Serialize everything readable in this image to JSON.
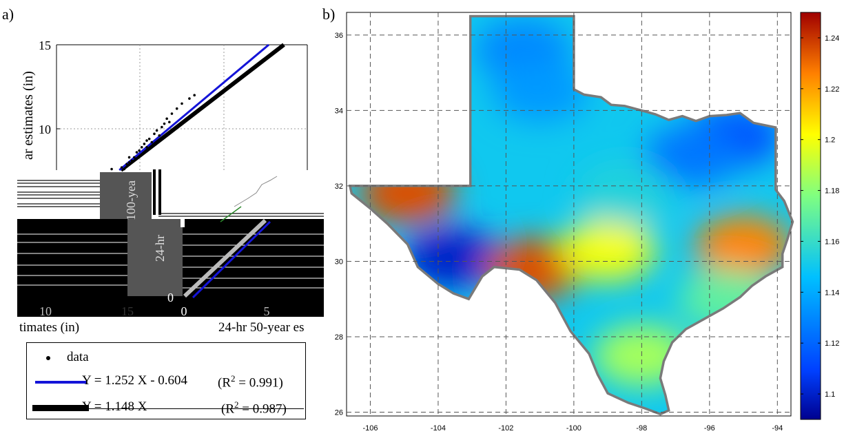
{
  "panels": {
    "a_label": "a)",
    "b_label": "b)"
  },
  "colors": {
    "blue_fit": "#1414d8",
    "black_fit": "#000000",
    "map_outline": "#7a7a7a"
  },
  "chart_data": [
    {
      "type": "scatter",
      "panel": "a)",
      "ylabel": "ar estimates (in)",
      "xlabel_fragments": [
        "timates (in)",
        "24-hr 50-year es"
      ],
      "corrupted_text_fragments": [
        "100-yea",
        "24-hr"
      ],
      "yticks": [
        "15",
        "10"
      ],
      "xticks_fragments": [
        "10",
        "15",
        "0",
        "5"
      ],
      "inset_ytick": "0",
      "ylim": [
        5,
        15
      ],
      "legend": [
        {
          "marker": "dot",
          "text": "data"
        },
        {
          "marker": "blue-line",
          "text": "Y = 1.252 X - 0.604",
          "r2_prefix": "(R",
          "r2_sup": "2",
          "r2_suffix": " = 0.991)"
        },
        {
          "marker": "black-line",
          "text": "Y = 1.148 X",
          "r2_prefix": "(R",
          "r2_sup": "2",
          "r2_suffix": " = 0.987)"
        }
      ],
      "series": [
        {
          "name": "data",
          "points": [
            [
              6.3,
              7.3
            ],
            [
              6.4,
              7.5
            ],
            [
              6.5,
              7.4
            ],
            [
              6.6,
              7.7
            ],
            [
              6.7,
              7.6
            ],
            [
              6.8,
              7.9
            ],
            [
              6.9,
              8.0
            ],
            [
              7.0,
              8.1
            ],
            [
              7.1,
              8.3
            ],
            [
              7.2,
              8.6
            ],
            [
              7.3,
              8.7
            ],
            [
              7.35,
              8.4
            ],
            [
              7.4,
              8.9
            ],
            [
              7.5,
              9.1
            ],
            [
              7.6,
              9.3
            ],
            [
              7.7,
              9.4
            ],
            [
              7.8,
              9.2
            ],
            [
              7.9,
              9.7
            ],
            [
              8.0,
              9.9
            ],
            [
              8.1,
              9.6
            ],
            [
              8.2,
              10.1
            ],
            [
              8.3,
              10.3
            ],
            [
              8.4,
              10.6
            ],
            [
              8.5,
              10.4
            ],
            [
              8.6,
              10.9
            ],
            [
              8.8,
              11.2
            ],
            [
              9.0,
              11.5
            ],
            [
              9.3,
              11.8
            ],
            [
              9.5,
              12.0
            ],
            [
              6.2,
              7.6
            ],
            [
              6.9,
              8.3
            ],
            [
              7.6,
              8.9
            ]
          ]
        },
        {
          "name": "Y = 1.252 X - 0.604",
          "slope": 1.252,
          "intercept": -0.604
        },
        {
          "name": "Y = 1.148 X",
          "slope": 1.148,
          "intercept": 0
        }
      ]
    },
    {
      "type": "heatmap",
      "panel": "b)",
      "xticks": [
        "-106",
        "-104",
        "-102",
        "-100",
        "-98",
        "-96",
        "-94"
      ],
      "yticks": [
        "26",
        "28",
        "30",
        "32",
        "34",
        "36"
      ],
      "xlim": [
        -106.7,
        -93.6
      ],
      "ylim": [
        25.9,
        36.6
      ],
      "colorbar": {
        "ticks": [
          "1.24",
          "1.22",
          "1.2",
          "1.18",
          "1.16",
          "1.14",
          "1.12",
          "1.1"
        ],
        "range": [
          1.09,
          1.25
        ]
      },
      "regions": [
        {
          "lon": -101.5,
          "lat": 35.6,
          "value": 1.13
        },
        {
          "lon": -101.0,
          "lat": 34.5,
          "value": 1.135
        },
        {
          "lon": -95.3,
          "lat": 33.3,
          "value": 1.115
        },
        {
          "lon": -96.5,
          "lat": 32.8,
          "value": 1.125
        },
        {
          "lon": -103.6,
          "lat": 30.1,
          "value": 1.1
        },
        {
          "lon": -104.9,
          "lat": 31.8,
          "value": 1.235
        },
        {
          "lon": -101.2,
          "lat": 29.8,
          "value": 1.235
        },
        {
          "lon": -95.0,
          "lat": 30.4,
          "value": 1.225
        },
        {
          "lon": -99.0,
          "lat": 30.3,
          "value": 1.2
        },
        {
          "lon": -98.0,
          "lat": 27.5,
          "value": 1.185
        },
        {
          "lon": -98.5,
          "lat": 31.8,
          "value": 1.155
        },
        {
          "lon": -95.5,
          "lat": 29.0,
          "value": 1.17
        }
      ]
    }
  ]
}
